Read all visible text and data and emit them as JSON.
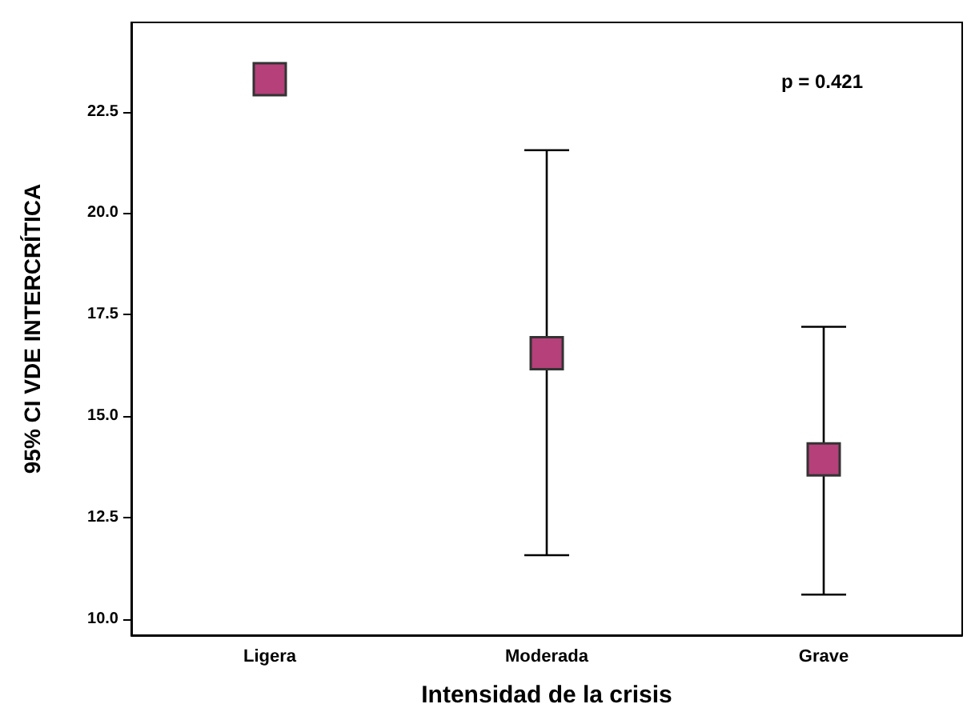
{
  "chart_data": {
    "type": "scatter",
    "xlabel": "Intensidad de la crisis",
    "ylabel": "95% CI VDE INTERCRÍTICA",
    "categories": [
      "Ligera",
      "Moderada",
      "Grave"
    ],
    "series": [
      {
        "color": "#b5407a",
        "values": [
          23.3,
          16.55,
          13.93
        ],
        "errors": [
          null,
          [
            11.57,
            21.55
          ],
          [
            10.6,
            17.2
          ]
        ]
      }
    ],
    "ylim": [
      9.6,
      24.7
    ],
    "yticks": [
      {
        "value": 10,
        "label": "10.0"
      },
      {
        "value": 12.5,
        "label": "12.5"
      },
      {
        "value": 15,
        "label": "15.0"
      },
      {
        "value": 17.5,
        "label": "17.5"
      },
      {
        "value": 20,
        "label": "20.0"
      },
      {
        "value": 22.5,
        "label": "22.5"
      }
    ],
    "annotations": [
      "p = 0.421"
    ],
    "marker": "square",
    "grid": false
  }
}
